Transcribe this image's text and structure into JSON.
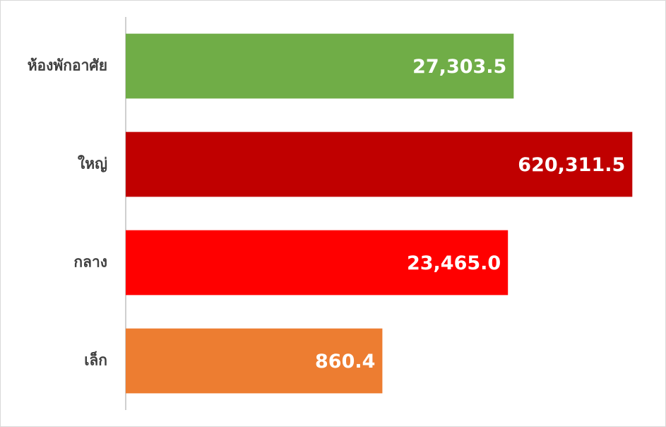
{
  "chart_data": {
    "type": "bar",
    "orientation": "horizontal",
    "xscale": "log",
    "categories": [
      "ห้องพักอาศัย",
      "ใหญ่",
      "กลาง",
      "เล็ก"
    ],
    "values": [
      27303.5,
      620311.5,
      23465.0,
      860.4
    ],
    "value_labels": [
      "27,303.5",
      "620,311.5",
      "23,465.0",
      "860.4"
    ],
    "colors": [
      "#70ad47",
      "#c00000",
      "#ff0000",
      "#ed7d31"
    ],
    "xlim": [
      1,
      1000000
    ]
  }
}
